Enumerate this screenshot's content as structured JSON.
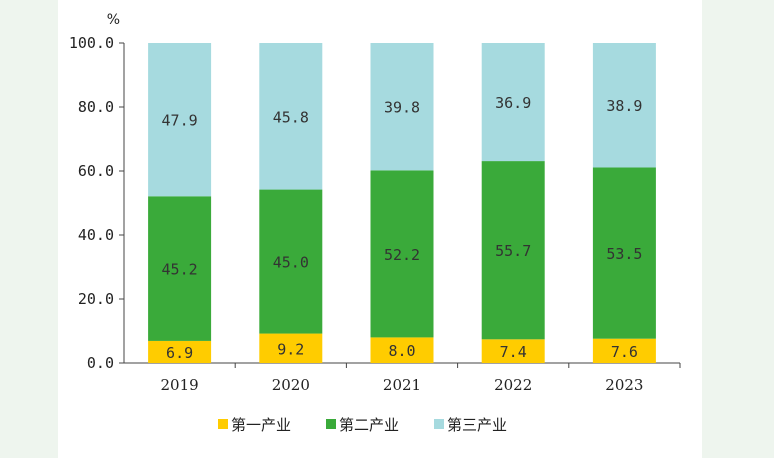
{
  "chart_data": {
    "type": "bar",
    "stacked": true,
    "categories": [
      "2019",
      "2020",
      "2021",
      "2022",
      "2023"
    ],
    "series": [
      {
        "name": "第一产业",
        "color": "#ffcc00",
        "values": [
          6.9,
          9.2,
          8.0,
          7.4,
          7.6
        ],
        "labels": [
          "6.9",
          "9.2",
          "8.0",
          "7.4",
          "7.6"
        ]
      },
      {
        "name": "第二产业",
        "color": "#3aaa3a",
        "values": [
          45.2,
          45.0,
          52.2,
          55.7,
          53.5
        ],
        "labels": [
          "45.2",
          "45.0",
          "52.2",
          "55.7",
          "53.5"
        ]
      },
      {
        "name": "第三产业",
        "color": "#a6dadf",
        "values": [
          47.9,
          45.8,
          39.8,
          36.9,
          38.9
        ],
        "labels": [
          "47.9",
          "45.8",
          "39.8",
          "36.9",
          "38.9"
        ]
      }
    ],
    "y_unit": "%",
    "ylim": [
      0,
      100
    ],
    "yticks": [
      "0.0",
      "20.0",
      "40.0",
      "60.0",
      "80.0",
      "100.0"
    ],
    "grid": false,
    "legend_position": "bottom"
  }
}
